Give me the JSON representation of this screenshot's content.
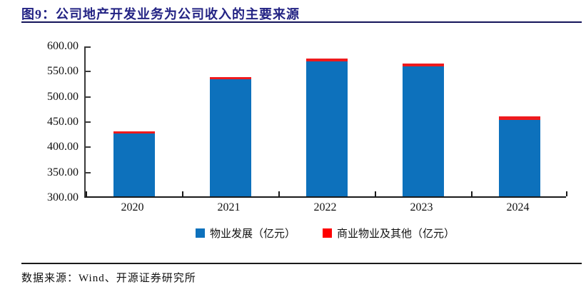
{
  "figure": {
    "title": "图9：公司地产开发业务为公司收入的主要来源",
    "source": "数据来源：Wind、开源证券研究所"
  },
  "colors": {
    "title": "#232384",
    "title_rule": "#14145a",
    "axis": "#2a2a2a",
    "series_blue": "#0d71bc",
    "series_red": "#ee1a1d",
    "legend_red": "#fe0000"
  },
  "chart_data": {
    "type": "bar",
    "stacked": true,
    "title": "公司地产开发业务为公司收入的主要来源",
    "categories": [
      "2020",
      "2021",
      "2022",
      "2023",
      "2024"
    ],
    "series": [
      {
        "name": "物业发展（亿元）",
        "color": "#0d71bc",
        "values": [
          425,
          532,
          568,
          558,
          452
        ]
      },
      {
        "name": "商业物业及其他（亿元）",
        "color": "#ee1a1d",
        "values": [
          4,
          5,
          5,
          5,
          6
        ]
      }
    ],
    "totals": [
      429,
      537,
      573,
      563,
      458
    ],
    "xlabel": "",
    "ylabel": "",
    "ylim": [
      300,
      600
    ],
    "ytick_step": 50,
    "ytick_labels": [
      "300.00",
      "350.00",
      "400.00",
      "450.00",
      "500.00",
      "550.00",
      "600.00"
    ],
    "grid": false,
    "legend_position": "bottom"
  }
}
